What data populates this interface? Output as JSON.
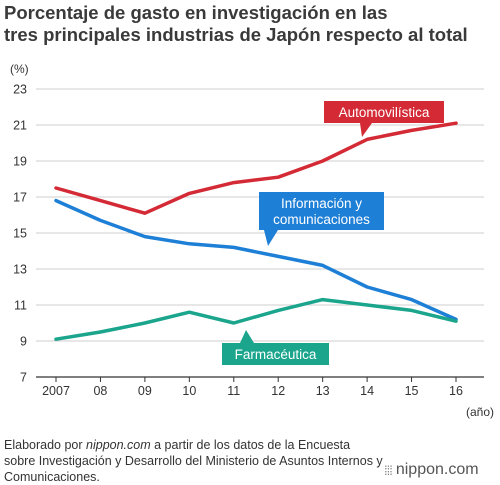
{
  "title_lines": [
    "Porcentaje de gasto en investigación en las",
    "tres principales industrias de Japón respecto al total"
  ],
  "source": {
    "prefix": "Elaborado por ",
    "site": "nippon.com",
    "rest": " a partir de los datos de la Encuesta sobre Investigación y Desarrollo del Ministerio de Asuntos Internos y Comunicaciones."
  },
  "logo": {
    "mark": "⁞⁞⁞",
    "text": "nippon.com"
  },
  "colors": {
    "automovilistica": "#d42a35",
    "informacion": "#1e7fd6",
    "farmaceutica": "#1aa58c",
    "grid": "#cfcfcf",
    "axis": "#333333"
  },
  "chart_data": {
    "type": "line",
    "title": "Porcentaje de gasto en investigación en las tres principales industrias de Japón respecto al total",
    "ylabel": "(%)",
    "xlabel": "(año)",
    "ylim": [
      7,
      23
    ],
    "yticks": [
      7,
      9,
      11,
      13,
      15,
      17,
      19,
      21,
      23
    ],
    "x": [
      "2007",
      "08",
      "09",
      "10",
      "11",
      "12",
      "13",
      "14",
      "15",
      "16"
    ],
    "grid": true,
    "series": [
      {
        "name": "Automovilística",
        "color_key": "automovilistica",
        "values": [
          17.5,
          16.8,
          16.1,
          17.2,
          17.8,
          18.1,
          19.0,
          20.2,
          20.7,
          21.1
        ]
      },
      {
        "name": "Información y comunicaciones",
        "color_key": "informacion",
        "values": [
          16.8,
          15.7,
          14.8,
          14.4,
          14.2,
          13.7,
          13.2,
          12.0,
          11.3,
          10.2
        ]
      },
      {
        "name": "Farmacéutica",
        "color_key": "farmaceutica",
        "values": [
          9.1,
          9.5,
          10.0,
          10.6,
          10.0,
          10.7,
          11.3,
          11.0,
          10.7,
          10.1
        ]
      }
    ]
  }
}
